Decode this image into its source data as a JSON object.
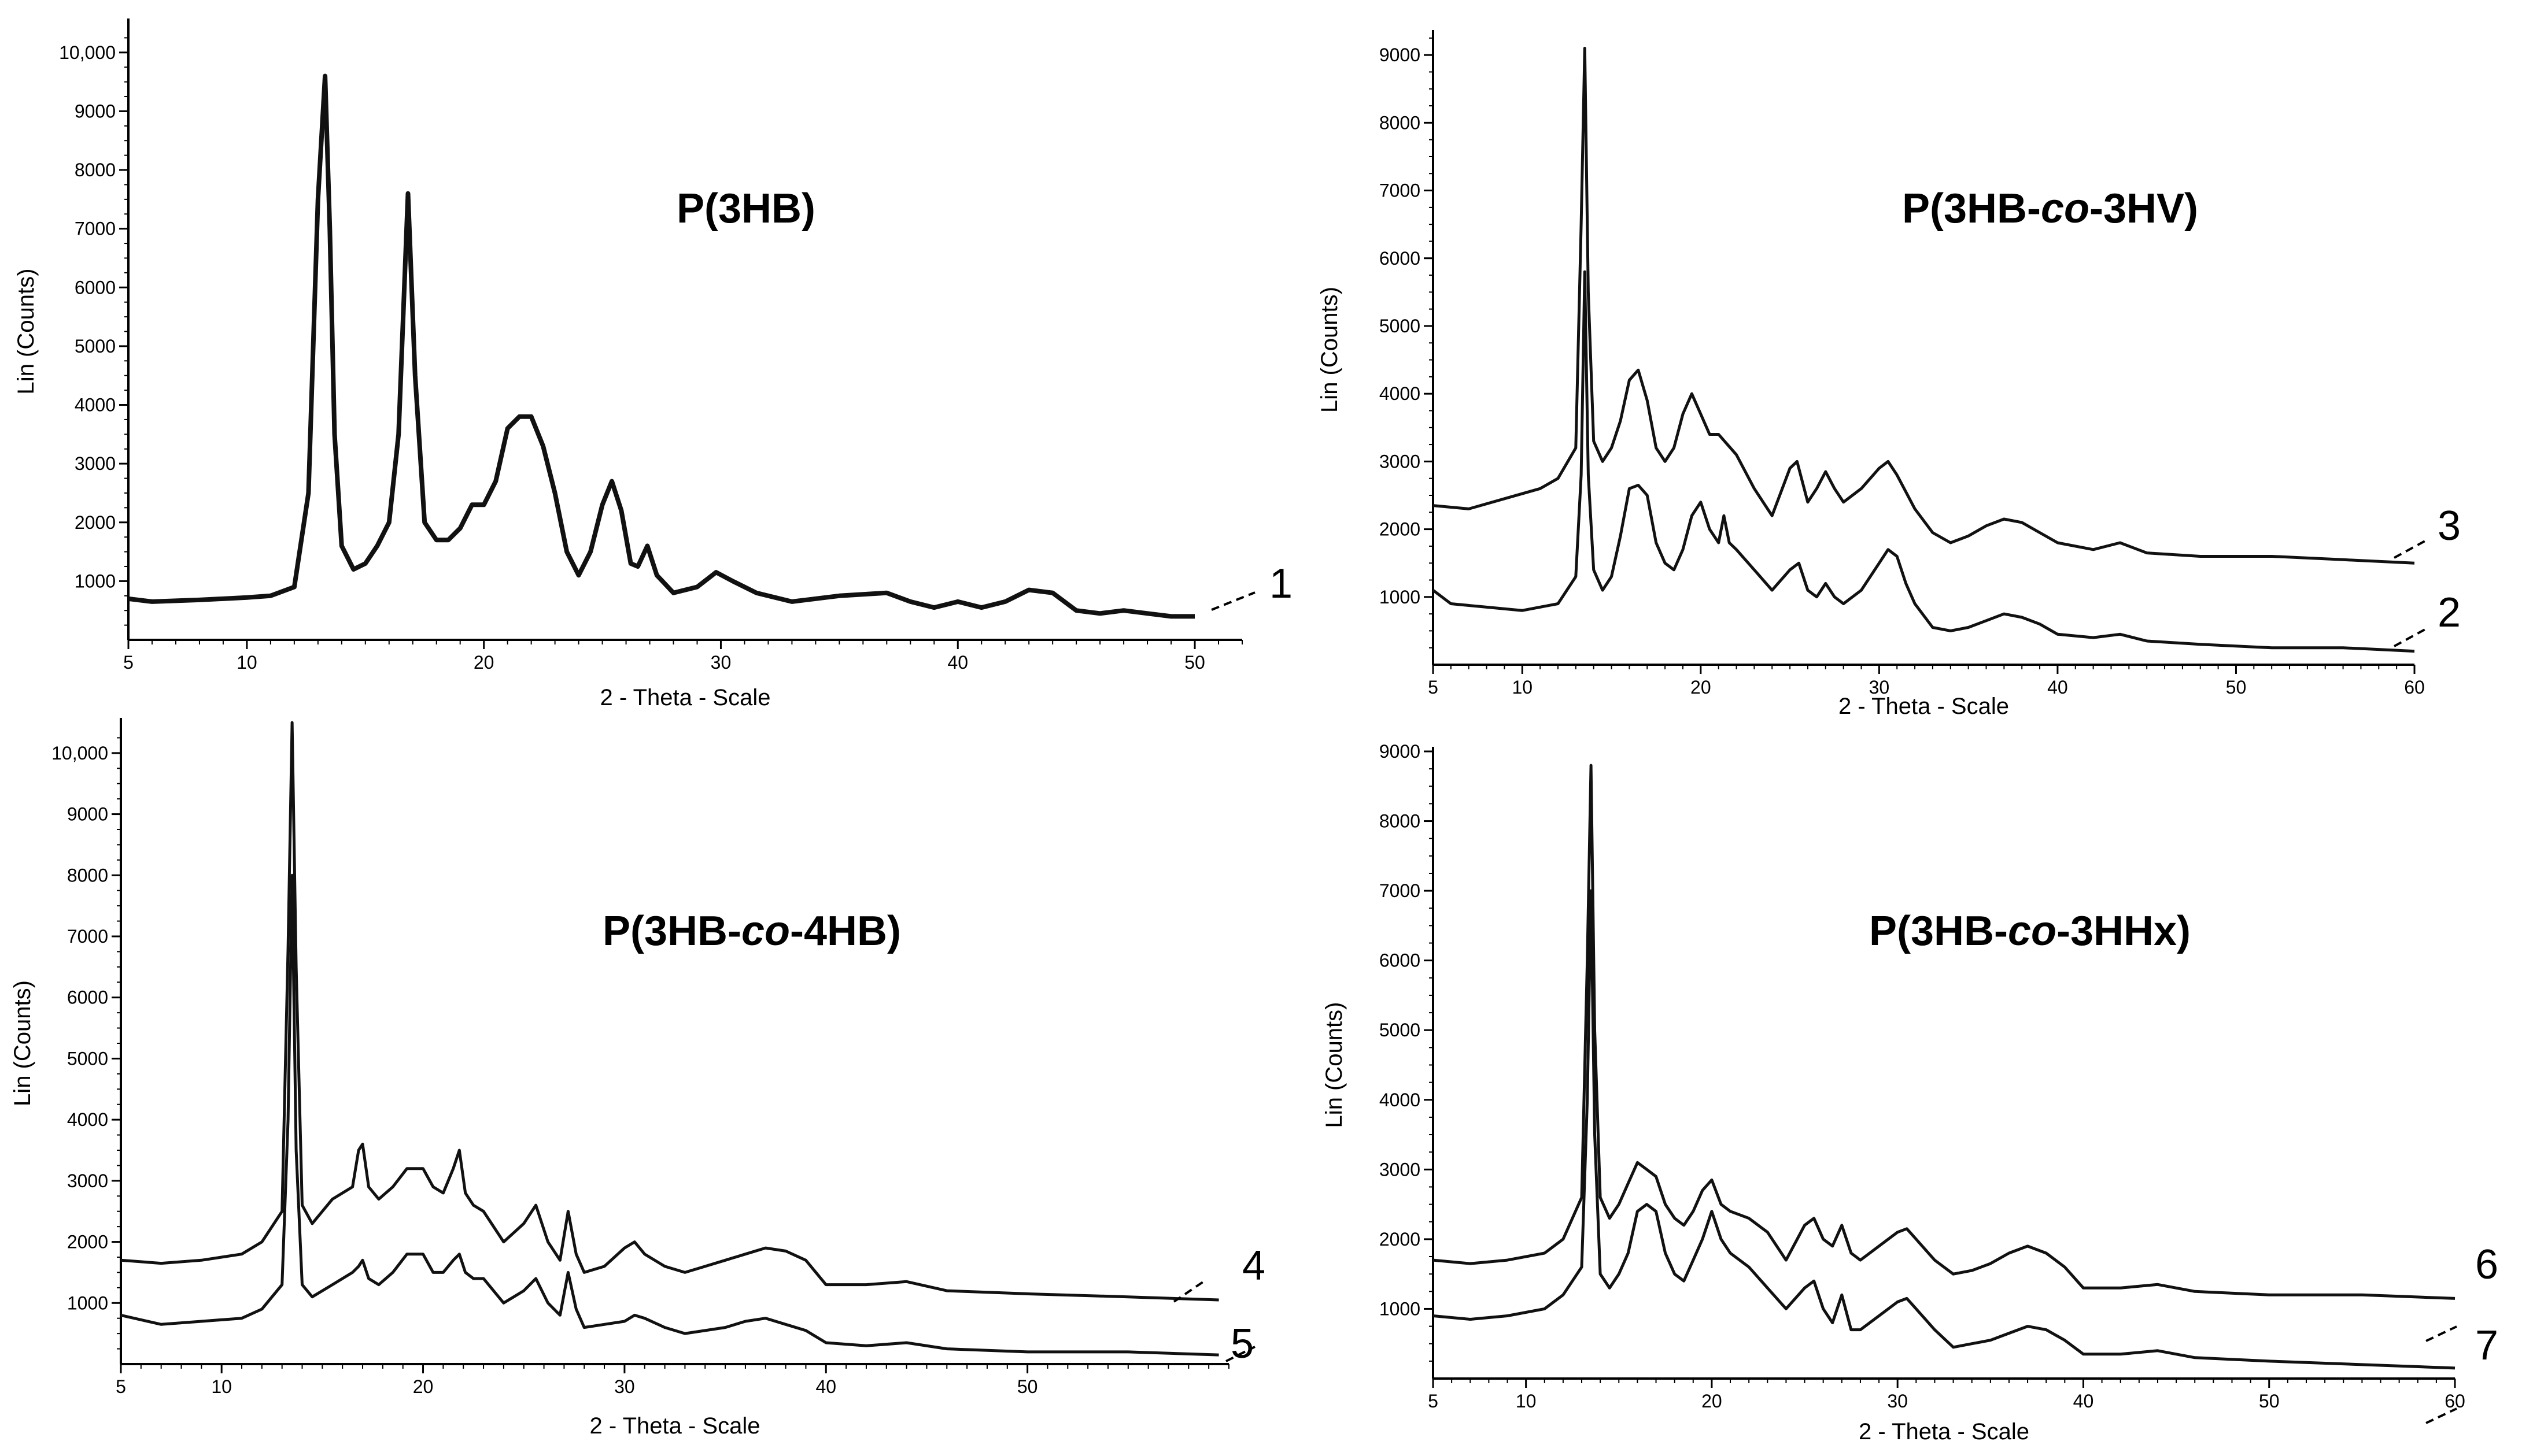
{
  "figure": {
    "xlabel": "2 - Theta - Scale",
    "ylabel": "Lin (Counts)"
  },
  "chart_data": [
    {
      "id": "p3hb",
      "type": "line",
      "title_parts": [
        {
          "text": "P(3HB)",
          "italic": false
        }
      ],
      "xlabel": "2 - Theta - Scale",
      "ylabel": "Lin (Counts)",
      "xlim": [
        5,
        52
      ],
      "ylim": [
        0,
        10500
      ],
      "xticks": [
        5,
        10,
        20,
        30,
        40,
        50
      ],
      "yticks": [
        1000,
        2000,
        3000,
        4000,
        5000,
        6000,
        7000,
        8000,
        9000,
        10000
      ],
      "ytick_labels": [
        "1000",
        "2000",
        "3000",
        "4000",
        "5000",
        "6000",
        "7000",
        "8000",
        "9000",
        "10,000"
      ],
      "series": [
        {
          "name": "1",
          "thick": true,
          "x": [
            5,
            6,
            8,
            10,
            11,
            12,
            12.6,
            13,
            13.3,
            13.5,
            13.7,
            14,
            14.5,
            15,
            15.5,
            16,
            16.4,
            16.8,
            17.1,
            17.5,
            18,
            18.5,
            19,
            19.5,
            20,
            20.5,
            21,
            21.5,
            22,
            22.5,
            23,
            23.5,
            24,
            24.5,
            25,
            25.4,
            25.8,
            26.2,
            26.5,
            26.9,
            27.3,
            28,
            29,
            29.8,
            30.5,
            31.5,
            33,
            35,
            37,
            38,
            39,
            40,
            41,
            42,
            43,
            44,
            45,
            46,
            47,
            48,
            49,
            50
          ],
          "y": [
            700,
            650,
            680,
            720,
            750,
            900,
            2500,
            7500,
            9600,
            7000,
            3500,
            1600,
            1200,
            1300,
            1600,
            2000,
            3500,
            7600,
            4500,
            2000,
            1700,
            1700,
            1900,
            2300,
            2300,
            2700,
            3600,
            3800,
            3800,
            3300,
            2500,
            1500,
            1100,
            1500,
            2300,
            2700,
            2200,
            1300,
            1250,
            1600,
            1100,
            800,
            900,
            1150,
            1000,
            800,
            650,
            750,
            800,
            650,
            550,
            650,
            550,
            650,
            850,
            800,
            500,
            450,
            500,
            450,
            400,
            400
          ]
        }
      ]
    },
    {
      "id": "p3hb-co-3hv",
      "type": "line",
      "title_parts": [
        {
          "text": "P(3HB-",
          "italic": false
        },
        {
          "text": "co",
          "italic": true
        },
        {
          "text": "-3HV)",
          "italic": false
        }
      ],
      "xlabel": "2 - Theta - Scale",
      "ylabel": "Lin (Counts)",
      "xlim": [
        5,
        60
      ],
      "ylim": [
        0,
        9300
      ],
      "xticks": [
        5,
        10,
        20,
        30,
        40,
        50,
        60
      ],
      "yticks": [
        1000,
        2000,
        3000,
        4000,
        5000,
        6000,
        7000,
        8000,
        9000
      ],
      "ytick_labels": [
        "1000",
        "2000",
        "3000",
        "4000",
        "5000",
        "6000",
        "7000",
        "8000",
        "9000"
      ],
      "series": [
        {
          "name": "3",
          "thick": false,
          "x": [
            5,
            7,
            9,
            11,
            12,
            13,
            13.3,
            13.5,
            13.7,
            14,
            14.5,
            15,
            15.5,
            16,
            16.5,
            17,
            17.5,
            18,
            18.5,
            19,
            19.5,
            20,
            20.5,
            21,
            22,
            23,
            24,
            25,
            25.4,
            26,
            26.5,
            27,
            27.5,
            28,
            29,
            30,
            30.5,
            31,
            32,
            33,
            34,
            35,
            36,
            37,
            38,
            39,
            40,
            42,
            43.5,
            45,
            48,
            52,
            56,
            60
          ],
          "y": [
            2350,
            2300,
            2450,
            2600,
            2750,
            3200,
            6500,
            9100,
            5500,
            3300,
            3000,
            3200,
            3600,
            4200,
            4350,
            3900,
            3200,
            3000,
            3200,
            3700,
            4000,
            3700,
            3400,
            3400,
            3100,
            2600,
            2200,
            2900,
            3000,
            2400,
            2600,
            2850,
            2600,
            2400,
            2600,
            2900,
            3000,
            2800,
            2300,
            1950,
            1800,
            1900,
            2050,
            2150,
            2100,
            1950,
            1800,
            1700,
            1800,
            1650,
            1600,
            1600,
            1550,
            1500
          ]
        },
        {
          "name": "2",
          "thick": false,
          "x": [
            5,
            6,
            8,
            10,
            12,
            13,
            13.3,
            13.5,
            13.7,
            14,
            14.5,
            15,
            15.5,
            16,
            16.5,
            17,
            17.5,
            18,
            18.5,
            19,
            19.5,
            20,
            20.5,
            21,
            21.3,
            21.6,
            22,
            23,
            24,
            25,
            25.5,
            26,
            26.5,
            27,
            27.5,
            28,
            29,
            30,
            30.5,
            31,
            31.5,
            32,
            33,
            34,
            35,
            36,
            37,
            38,
            39,
            40,
            42,
            43.5,
            45,
            48,
            52,
            56,
            60
          ],
          "y": [
            1100,
            900,
            850,
            800,
            900,
            1300,
            2800,
            5800,
            2800,
            1400,
            1100,
            1300,
            1900,
            2600,
            2650,
            2500,
            1800,
            1500,
            1400,
            1700,
            2200,
            2400,
            2000,
            1800,
            2200,
            1800,
            1700,
            1400,
            1100,
            1400,
            1500,
            1100,
            1000,
            1200,
            1000,
            900,
            1100,
            1500,
            1700,
            1600,
            1200,
            900,
            550,
            500,
            550,
            650,
            750,
            700,
            600,
            450,
            400,
            450,
            350,
            300,
            250,
            250,
            200
          ]
        }
      ]
    },
    {
      "id": "p3hb-co-4hb",
      "type": "line",
      "title_parts": [
        {
          "text": "P(3HB-",
          "italic": false
        },
        {
          "text": "co",
          "italic": true
        },
        {
          "text": "-4HB)",
          "italic": false
        }
      ],
      "xlabel": "2 - Theta - Scale",
      "ylabel": "Lin (Counts)",
      "xlim": [
        5,
        60
      ],
      "ylim": [
        0,
        10500
      ],
      "xticks": [
        5,
        10,
        20,
        30,
        40,
        50
      ],
      "yticks": [
        1000,
        2000,
        3000,
        4000,
        5000,
        6000,
        7000,
        8000,
        9000,
        10000
      ],
      "ytick_labels": [
        "1000",
        "2000",
        "3000",
        "4000",
        "5000",
        "6000",
        "7000",
        "8000",
        "9000",
        "10,000"
      ],
      "series": [
        {
          "name": "4",
          "thick": false,
          "x": [
            5,
            7,
            9,
            11,
            12,
            13,
            13.3,
            13.5,
            13.7,
            14,
            14.5,
            15,
            15.5,
            16,
            16.5,
            16.8,
            17,
            17.3,
            17.8,
            18.5,
            19.2,
            20,
            20.5,
            21,
            21.5,
            21.8,
            22.1,
            22.5,
            23,
            24,
            25,
            25.6,
            26.2,
            26.8,
            27.2,
            27.6,
            28,
            29,
            30,
            30.5,
            31,
            32,
            33,
            34,
            35,
            36,
            37,
            38,
            39,
            40,
            42,
            44,
            46,
            50,
            55,
            59.5
          ],
          "y": [
            1700,
            1650,
            1700,
            1800,
            2000,
            2500,
            6800,
            10500,
            6500,
            2600,
            2300,
            2500,
            2700,
            2800,
            2900,
            3500,
            3600,
            2900,
            2700,
            2900,
            3200,
            3200,
            2900,
            2800,
            3200,
            3500,
            2800,
            2600,
            2500,
            2000,
            2300,
            2600,
            2000,
            1700,
            2500,
            1800,
            1500,
            1600,
            1900,
            2000,
            1800,
            1600,
            1500,
            1600,
            1700,
            1800,
            1900,
            1850,
            1700,
            1300,
            1300,
            1350,
            1200,
            1150,
            1100,
            1050
          ]
        },
        {
          "name": "5",
          "thick": false,
          "x": [
            5,
            7,
            9,
            11,
            12,
            13,
            13.3,
            13.5,
            13.7,
            14,
            14.5,
            15,
            15.5,
            16,
            16.5,
            16.8,
            17,
            17.3,
            17.8,
            18.5,
            19.2,
            20,
            20.5,
            21,
            21.5,
            21.8,
            22.1,
            22.5,
            23,
            24,
            25,
            25.6,
            26.2,
            26.8,
            27.2,
            27.6,
            28,
            29,
            30,
            30.5,
            31,
            32,
            33,
            34,
            35,
            36,
            37,
            38,
            39,
            40,
            42,
            44,
            46,
            50,
            55,
            59.5
          ],
          "y": [
            800,
            650,
            700,
            750,
            900,
            1300,
            4000,
            8000,
            3500,
            1300,
            1100,
            1200,
            1300,
            1400,
            1500,
            1600,
            1700,
            1400,
            1300,
            1500,
            1800,
            1800,
            1500,
            1500,
            1700,
            1800,
            1500,
            1400,
            1400,
            1000,
            1200,
            1400,
            1000,
            800,
            1500,
            900,
            600,
            650,
            700,
            800,
            750,
            600,
            500,
            550,
            600,
            700,
            750,
            650,
            550,
            350,
            300,
            350,
            250,
            200,
            200,
            150
          ]
        }
      ]
    },
    {
      "id": "p3hb-co-3hhx",
      "type": "line",
      "title_parts": [
        {
          "text": "P(3HB-",
          "italic": false
        },
        {
          "text": "co",
          "italic": true
        },
        {
          "text": "-3HHx)",
          "italic": false
        }
      ],
      "xlabel": "2 - Theta - Scale",
      "ylabel": "Lin (Counts)",
      "xlim": [
        5,
        60
      ],
      "ylim": [
        0,
        9000
      ],
      "xticks": [
        5,
        10,
        20,
        30,
        40,
        50,
        60
      ],
      "yticks": [
        1000,
        2000,
        3000,
        4000,
        5000,
        6000,
        7000,
        8000,
        9000
      ],
      "ytick_labels": [
        "1000",
        "2000",
        "3000",
        "4000",
        "5000",
        "6000",
        "7000",
        "8000",
        "9000"
      ],
      "series": [
        {
          "name": "6",
          "thick": false,
          "x": [
            5,
            7,
            9,
            11,
            12,
            13,
            13.3,
            13.5,
            13.7,
            14,
            14.5,
            15,
            15.5,
            16,
            16.5,
            17,
            17.5,
            18,
            18.5,
            19,
            19.5,
            20,
            20.5,
            21,
            22,
            23,
            24,
            25,
            25.5,
            26,
            26.5,
            27,
            27.5,
            28,
            29,
            30,
            30.5,
            31,
            32,
            33,
            34,
            35,
            36,
            37,
            38,
            39,
            40,
            42,
            44,
            46,
            50,
            55,
            60
          ],
          "y": [
            1700,
            1650,
            1700,
            1800,
            2000,
            2600,
            6000,
            8800,
            5000,
            2600,
            2300,
            2500,
            2800,
            3100,
            3000,
            2900,
            2500,
            2300,
            2200,
            2400,
            2700,
            2850,
            2500,
            2400,
            2300,
            2100,
            1700,
            2200,
            2300,
            2000,
            1900,
            2200,
            1800,
            1700,
            1900,
            2100,
            2150,
            2000,
            1700,
            1500,
            1550,
            1650,
            1800,
            1900,
            1800,
            1600,
            1300,
            1300,
            1350,
            1250,
            1200,
            1200,
            1150
          ]
        },
        {
          "name": "7",
          "thick": false,
          "x": [
            5,
            7,
            9,
            11,
            12,
            13,
            13.3,
            13.5,
            13.7,
            14,
            14.5,
            15,
            15.5,
            16,
            16.5,
            17,
            17.5,
            18,
            18.5,
            19,
            19.5,
            20,
            20.5,
            21,
            22,
            23,
            24,
            25,
            25.5,
            26,
            26.5,
            27,
            27.5,
            28,
            29,
            30,
            30.5,
            31,
            32,
            33,
            34,
            35,
            36,
            37,
            38,
            39,
            40,
            42,
            44,
            46,
            50,
            55,
            60
          ],
          "y": [
            900,
            850,
            900,
            1000,
            1200,
            1600,
            4000,
            7000,
            3500,
            1500,
            1300,
            1500,
            1800,
            2400,
            2500,
            2400,
            1800,
            1500,
            1400,
            1700,
            2000,
            2400,
            2000,
            1800,
            1600,
            1300,
            1000,
            1300,
            1400,
            1000,
            800,
            1200,
            700,
            700,
            900,
            1100,
            1150,
            1000,
            700,
            450,
            500,
            550,
            650,
            750,
            700,
            550,
            350,
            350,
            400,
            300,
            250,
            200,
            150
          ]
        }
      ]
    }
  ]
}
